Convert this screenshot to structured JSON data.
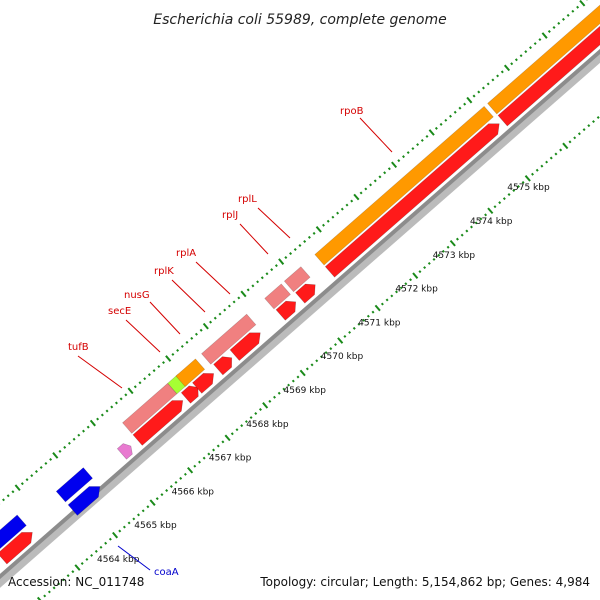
{
  "title": "Escherichia coli 55989, complete genome",
  "footer": {
    "accession": "Accession: NC_011748",
    "summary": "Topology: circular; Length: 5,154,862 bp; Genes: 4,984"
  },
  "ruler": {
    "labels": [
      "4564 kbp",
      "4565 kbp",
      "4566 kbp",
      "4567 kbp",
      "4568 kbp",
      "4569 kbp",
      "4570 kbp",
      "4571 kbp",
      "4572 kbp",
      "4573 kbp",
      "4574 kbp",
      "4575 kbp"
    ]
  },
  "colors": {
    "background": "#ffffff",
    "backbone": "#8c8c8c",
    "cds": "#ff1a1a",
    "gene_orange": "#ff9900",
    "gene_pink": "#f08080",
    "gene_lime": "#a6ff33",
    "gene_blue": "#0000ee",
    "tick_green": "#1a8a1a",
    "label_red": "#d40000",
    "label_blue": "#0000cc"
  },
  "genes": [
    {
      "name": "tufB",
      "color": "label_red"
    },
    {
      "name": "secE",
      "color": "label_red"
    },
    {
      "name": "nusG",
      "color": "label_red"
    },
    {
      "name": "rplK",
      "color": "label_red"
    },
    {
      "name": "rplA",
      "color": "label_red"
    },
    {
      "name": "rplJ",
      "color": "label_red"
    },
    {
      "name": "rplL",
      "color": "label_red"
    },
    {
      "name": "rpoB",
      "color": "label_red"
    },
    {
      "name": "coaA",
      "color": "label_blue"
    }
  ]
}
